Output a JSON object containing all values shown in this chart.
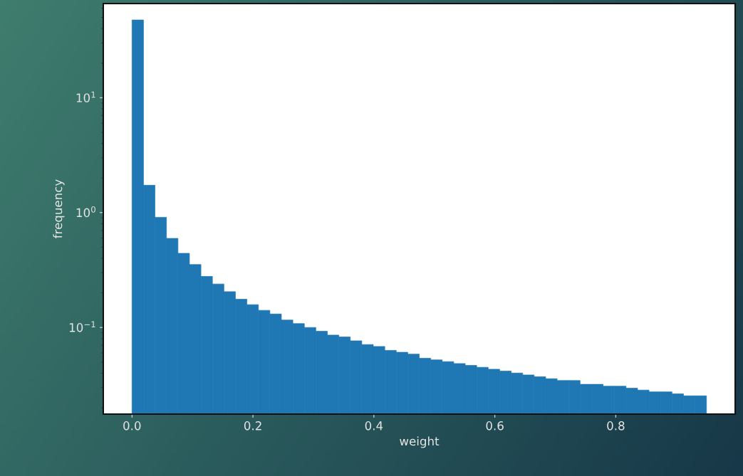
{
  "chart_data": {
    "type": "histogram",
    "xlabel": "weight",
    "ylabel": "frequency",
    "color": "#1f77b4",
    "log": "y",
    "bins": [
      0,
      0.019,
      0.038,
      0.057,
      0.076,
      0.095,
      0.114,
      0.133,
      0.152,
      0.171,
      0.19,
      0.209,
      0.228,
      0.247,
      0.266,
      0.285,
      0.304,
      0.323,
      0.342,
      0.361,
      0.38,
      0.399,
      0.418,
      0.437,
      0.456,
      0.475,
      0.494,
      0.513,
      0.532,
      0.551,
      0.57,
      0.589,
      0.608,
      0.627,
      0.646,
      0.665,
      0.684,
      0.703,
      0.722,
      0.741,
      0.76,
      0.779,
      0.798,
      0.817,
      0.836,
      0.855,
      0.874,
      0.893,
      0.912,
      0.931,
      0.95
    ],
    "values": [
      47.5,
      1.73,
      0.91,
      0.596,
      0.442,
      0.353,
      0.278,
      0.239,
      0.205,
      0.176,
      0.158,
      0.141,
      0.131,
      0.116,
      0.108,
      0.1,
      0.0926,
      0.0859,
      0.0826,
      0.0765,
      0.071,
      0.0683,
      0.0632,
      0.0608,
      0.0586,
      0.054,
      0.0522,
      0.0504,
      0.0485,
      0.0467,
      0.045,
      0.0433,
      0.0417,
      0.0401,
      0.0386,
      0.0372,
      0.0358,
      0.0345,
      0.0345,
      0.032,
      0.032,
      0.0308,
      0.0308,
      0.0296,
      0.0285,
      0.0275,
      0.0275,
      0.0264,
      0.0254,
      0.0254
    ],
    "xlim": [
      -0.0475,
      0.9975
    ],
    "ylim": [
      0.0176,
      66
    ],
    "xticks": [
      {
        "value": 0,
        "label": "0.0"
      },
      0.2,
      0.4,
      0.6,
      0.8
    ],
    "yticks": [
      {
        "value": 0.1,
        "label": "10$^{−1}$"
      },
      {
        "value": 1,
        "label": "10$^{0}$"
      },
      {
        "value": 10,
        "label": "10$^{1}$"
      }
    ]
  }
}
